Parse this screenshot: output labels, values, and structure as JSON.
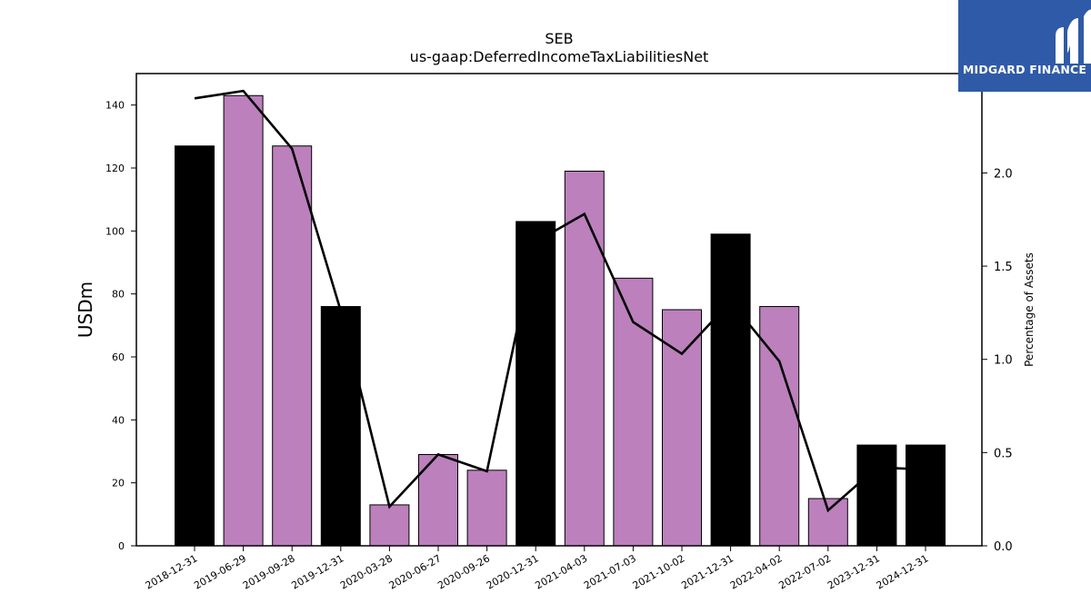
{
  "chart_data": {
    "type": "bar",
    "title": "SEB",
    "subtitle": "us-gaap:DeferredIncomeTaxLiabilitiesNet",
    "ylabel": "USDm",
    "y2label": "Percentage of Assets",
    "ylim": [
      0,
      150
    ],
    "y2lim": [
      0,
      2.533
    ],
    "yticks": [
      0,
      20,
      40,
      60,
      80,
      100,
      120,
      140
    ],
    "y2ticks": [
      0.0,
      0.5,
      1.0,
      1.5,
      2.0
    ],
    "categories": [
      "2018-12-31",
      "2019-06-29",
      "2019-09-28",
      "2019-12-31",
      "2020-03-28",
      "2020-06-27",
      "2020-09-26",
      "2020-12-31",
      "2021-04-03",
      "2021-07-03",
      "2021-10-02",
      "2021-12-31",
      "2022-04-02",
      "2022-07-02",
      "2023-12-31",
      "2024-12-31"
    ],
    "values": [
      127,
      143,
      127,
      76,
      13,
      29,
      24,
      103,
      119,
      85,
      75,
      99,
      76,
      15,
      32,
      32
    ],
    "bar_kind": [
      "annual",
      "quarterly",
      "quarterly",
      "annual",
      "quarterly",
      "quarterly",
      "quarterly",
      "annual",
      "quarterly",
      "quarterly",
      "quarterly",
      "annual",
      "quarterly",
      "quarterly",
      "annual",
      "annual"
    ],
    "pct_assets": [
      2.4,
      2.44,
      2.13,
      1.26,
      0.21,
      0.49,
      0.4,
      1.63,
      1.78,
      1.2,
      1.03,
      1.31,
      0.99,
      0.19,
      0.42,
      0.41
    ],
    "colors": {
      "annual": "#000000",
      "quarterly": "#bc80bd",
      "line": "#000000"
    },
    "grid": false,
    "legend": "none"
  },
  "logo": {
    "text": "MIDGARD FINANCE",
    "background": "#2f5aa8"
  }
}
